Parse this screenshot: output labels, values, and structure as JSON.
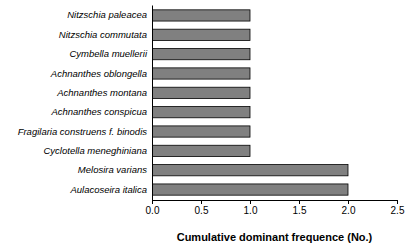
{
  "chart_data": {
    "type": "bar",
    "orientation": "horizontal",
    "x_label": "Cumulative dominant frequence (No.)",
    "categories": [
      "Nitzschia paleacea",
      "Nitzschia commutata",
      "Cymbella muellerii",
      "Achnanthes oblongella",
      "Achnanthes montana",
      "Achnanthes conspicua",
      "Fragilaria construens f. binodis",
      "Cyclotella meneghiniana",
      "Melosira varians",
      "Aulacoseira italica"
    ],
    "values": [
      1,
      1,
      1,
      1,
      1,
      1,
      1,
      1,
      2,
      2
    ],
    "color": "#808080",
    "xlim": [
      0,
      2.5
    ],
    "xticks": [
      {
        "value": 0,
        "label": "0.0"
      },
      {
        "value": 0.5,
        "label": "0.5"
      },
      {
        "value": 1,
        "label": "1.0"
      },
      {
        "value": 1.5,
        "label": "1.5"
      },
      {
        "value": 2,
        "label": "2.0"
      },
      {
        "value": 2.5,
        "label": "2.5"
      }
    ],
    "grid": false
  }
}
